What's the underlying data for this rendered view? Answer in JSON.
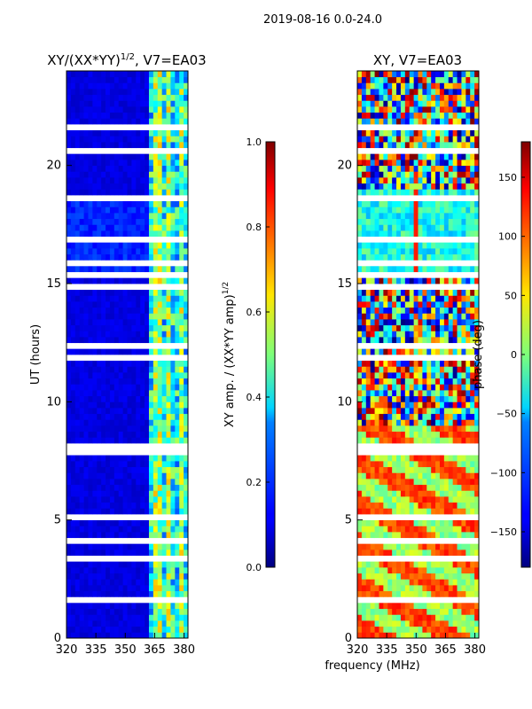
{
  "suptitle": "2019-08-16 0.0-24.0",
  "chart_data": [
    {
      "type": "heatmap",
      "title_main": "XY/(XX*YY)",
      "title_sup": "1/2",
      "title_tail": ", V7=EA03",
      "ylabel": "UT (hours)",
      "xlabel": "",
      "x_ticks": [
        "320",
        "335",
        "350",
        "365",
        "380"
      ],
      "x_tick_values": [
        320,
        335,
        350,
        365,
        380
      ],
      "y_ticks": [
        "0",
        "5",
        "10",
        "15",
        "20"
      ],
      "y_tick_values": [
        0,
        5,
        10,
        15,
        20
      ],
      "xlim": [
        320,
        382
      ],
      "ylim": [
        0,
        24
      ],
      "colorbar": {
        "label_main": "XY amp. / (XX*YY amp)",
        "label_sup": "1/2",
        "ticks": [
          "0.0",
          "0.2",
          "0.4",
          "0.6",
          "0.8",
          "1.0"
        ],
        "tick_values": [
          0.0,
          0.2,
          0.4,
          0.6,
          0.8,
          1.0
        ],
        "range": [
          0.0,
          1.0
        ]
      }
    },
    {
      "type": "heatmap",
      "title": "XY, V7=EA03",
      "ylabel": "",
      "xlabel": "frequency (MHz)",
      "x_ticks": [
        "320",
        "335",
        "350",
        "365",
        "380"
      ],
      "x_tick_values": [
        320,
        335,
        350,
        365,
        380
      ],
      "y_ticks": [
        "0",
        "5",
        "10",
        "15",
        "20"
      ],
      "y_tick_values": [
        0,
        5,
        10,
        15,
        20
      ],
      "xlim": [
        320,
        382
      ],
      "ylim": [
        0,
        24
      ],
      "colorbar": {
        "label": "phase (deg)",
        "ticks": [
          "−150",
          "−100",
          "−50",
          "0",
          "50",
          "100",
          "150"
        ],
        "tick_values": [
          -150,
          -100,
          -50,
          0,
          50,
          100,
          150
        ],
        "range": [
          -180,
          180
        ]
      }
    }
  ]
}
